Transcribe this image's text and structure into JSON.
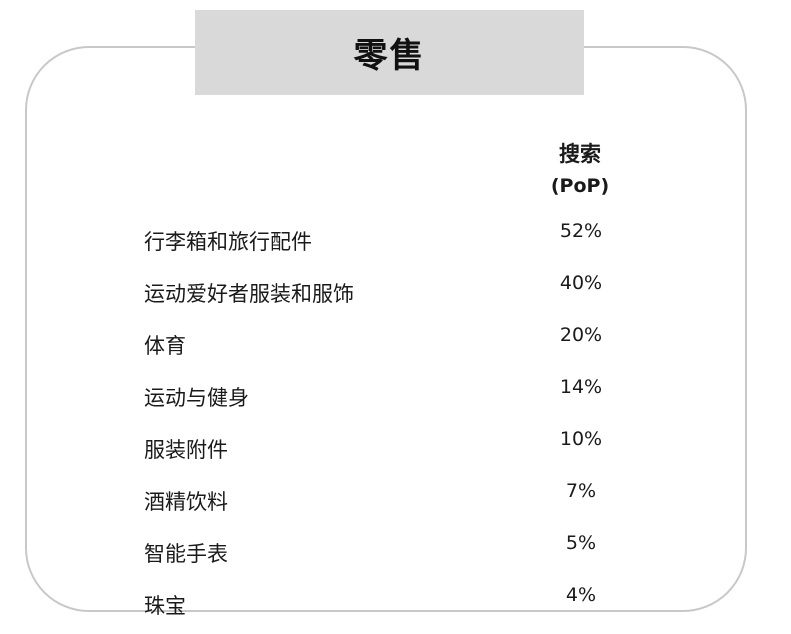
{
  "title": "零售",
  "column_header": {
    "line1": "搜索",
    "line2": "(PoP)"
  },
  "rows": [
    {
      "label": "行李箱和旅行配件",
      "value": "52%"
    },
    {
      "label": "运动爱好者服装和服饰",
      "value": "40%"
    },
    {
      "label": "体育",
      "value": "20%"
    },
    {
      "label": "运动与健身",
      "value": "14%"
    },
    {
      "label": "服装附件",
      "value": "10%"
    },
    {
      "label": "酒精饮料",
      "value": "7%"
    },
    {
      "label": "智能手表",
      "value": "5%"
    },
    {
      "label": "珠宝",
      "value": "4%"
    }
  ]
}
